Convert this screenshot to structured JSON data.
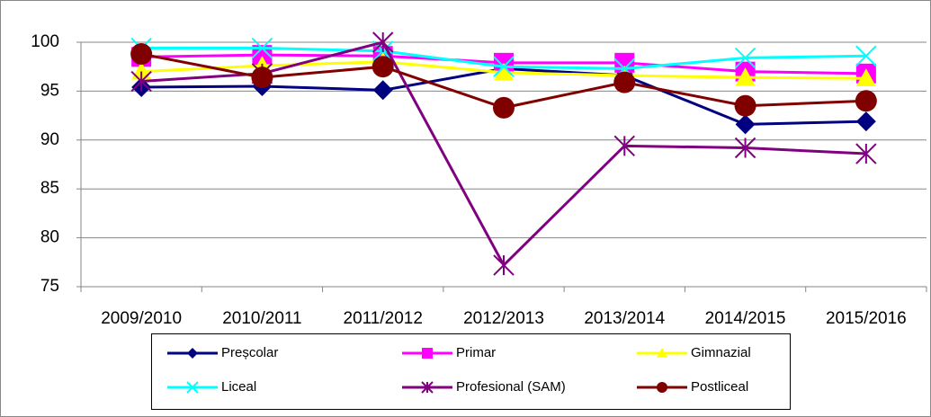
{
  "chart_data": {
    "type": "line",
    "categories": [
      "2009/2010",
      "2010/2011",
      "2011/2012",
      "2012/2013",
      "2013/2014",
      "2014/2015",
      "2015/2016"
    ],
    "series": [
      {
        "name": "Preșcolar",
        "color": "#000080",
        "marker": "diamond",
        "values": [
          95.4,
          95.5,
          95.1,
          97.3,
          96.6,
          91.6,
          91.9
        ]
      },
      {
        "name": "Primar",
        "color": "#ff00ff",
        "marker": "square",
        "values": [
          98.5,
          98.7,
          98.6,
          97.9,
          97.9,
          97.0,
          96.8
        ]
      },
      {
        "name": "Gimnazial",
        "color": "#ffff00",
        "marker": "triangle",
        "values": [
          97.0,
          97.6,
          98.0,
          96.9,
          96.6,
          96.4,
          96.3
        ]
      },
      {
        "name": "Liceal",
        "color": "#00ffff",
        "marker": "x",
        "values": [
          99.4,
          99.4,
          99.1,
          97.5,
          97.3,
          98.4,
          98.6
        ]
      },
      {
        "name": "Profesional (SAM)",
        "color": "#800080",
        "marker": "star",
        "values": [
          96.0,
          96.8,
          100.0,
          77.2,
          89.4,
          89.2,
          88.6
        ]
      },
      {
        "name": "Postliceal",
        "color": "#800000",
        "marker": "circle",
        "values": [
          98.8,
          96.4,
          97.5,
          93.3,
          95.9,
          93.5,
          94.0
        ]
      }
    ],
    "ylim": [
      75,
      100
    ],
    "yticks": [
      75,
      80,
      85,
      90,
      95,
      100
    ],
    "grid": true,
    "legend": "bottom"
  }
}
